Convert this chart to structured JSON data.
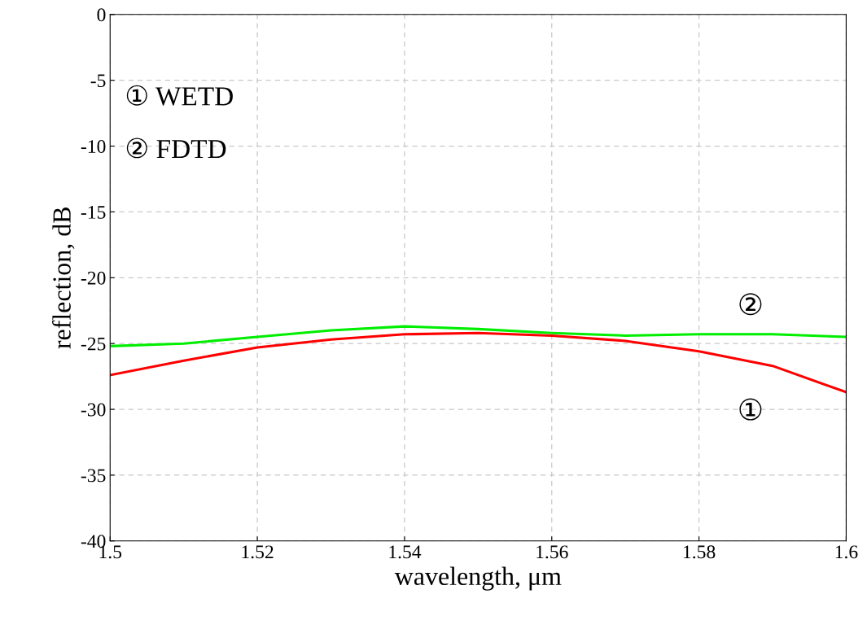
{
  "chart_data": {
    "type": "line",
    "xlabel": "wavelength, μm",
    "ylabel": "reflection, dB",
    "x": [
      1.5,
      1.51,
      1.52,
      1.53,
      1.54,
      1.55,
      1.56,
      1.57,
      1.58,
      1.59,
      1.6
    ],
    "series": [
      {
        "color": "#ff0000",
        "values": [
          -27.4,
          -26.3,
          -25.3,
          -24.7,
          -24.3,
          -24.2,
          -24.4,
          -24.8,
          -25.6,
          -26.7,
          -28.7
        ]
      },
      {
        "color": "#00ee00",
        "values": [
          -25.2,
          -25.0,
          -24.5,
          -24.0,
          -23.7,
          -23.9,
          -24.2,
          -24.4,
          -24.3,
          -24.3,
          -24.5
        ]
      }
    ],
    "xlim": [
      1.5,
      1.6
    ],
    "xticks": [
      1.5,
      1.52,
      1.54,
      1.56,
      1.58,
      1.6
    ],
    "ylim": [
      -40,
      0
    ],
    "yticks": [
      -40,
      -35,
      -30,
      -25,
      -20,
      -15,
      -10,
      -5,
      0
    ],
    "grid": true,
    "line_style": "solid",
    "marker": "none",
    "annotations": [
      "① WETD",
      "② FDTD",
      "②",
      "①"
    ]
  }
}
